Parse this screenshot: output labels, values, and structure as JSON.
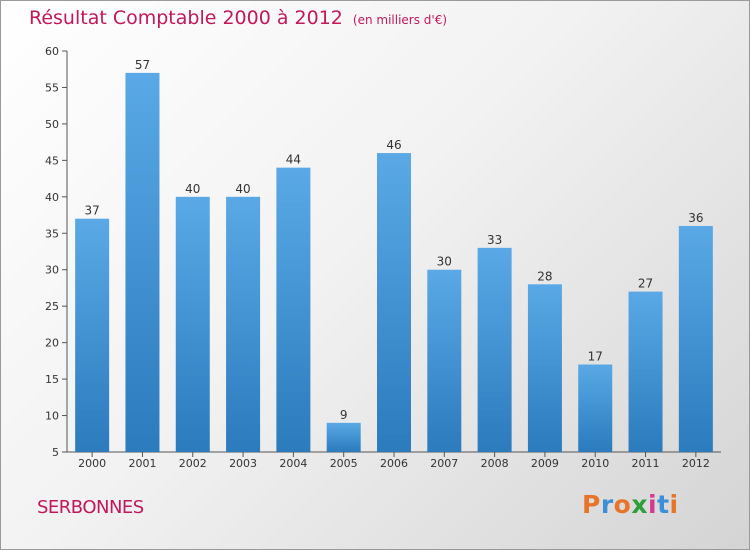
{
  "header": {
    "title": "Résultat Comptable 2000 à 2012",
    "subtitle": "(en milliers d'€)"
  },
  "footer": {
    "commune": "SERBONNES",
    "logo": "Proxiti"
  },
  "colors": {
    "title": "#c2185b",
    "bar_top": "#5aa9e6",
    "bar_bottom": "#2b7bbd",
    "logo": [
      "#e8742a",
      "#3a8fd6",
      "#e8742a",
      "#2e9e3b",
      "#d63a8f",
      "#3a8fd6",
      "#e8742a"
    ]
  },
  "chart_data": {
    "type": "bar",
    "title": "Résultat Comptable 2000 à 2012",
    "subtitle": "(en milliers d'€)",
    "categories": [
      "2000",
      "2001",
      "2002",
      "2003",
      "2004",
      "2005",
      "2006",
      "2007",
      "2008",
      "2009",
      "2010",
      "2011",
      "2012"
    ],
    "values": [
      37,
      57,
      40,
      40,
      44,
      9,
      46,
      30,
      33,
      28,
      17,
      27,
      36
    ],
    "xlabel": "",
    "ylabel": "",
    "ylim": [
      5,
      60
    ],
    "yticks": [
      5,
      10,
      15,
      20,
      25,
      30,
      35,
      40,
      45,
      50,
      55,
      60
    ],
    "grid": false,
    "data_labels": true
  }
}
